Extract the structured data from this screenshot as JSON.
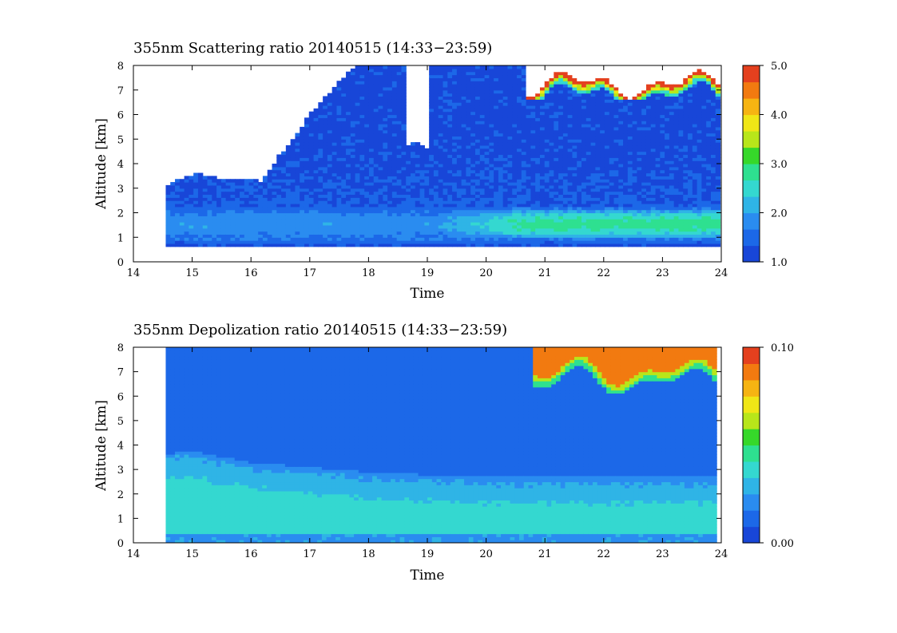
{
  "colors": {
    "colormap": [
      "#1846d8",
      "#1c68e8",
      "#2a8cf0",
      "#2fb4e6",
      "#34d8d0",
      "#2ee090",
      "#36d82a",
      "#b8e61a",
      "#f0e616",
      "#f6b412",
      "#f27a10",
      "#e4401e"
    ],
    "background": "#ffffff",
    "saturated_fill": "#ffffff"
  },
  "chart_data": [
    {
      "type": "heatmap",
      "title": "355nm Scattering ratio  20140515 (14:33−23:59)",
      "xlabel": "Time",
      "ylabel": "Altitude [km]",
      "xlim": [
        14,
        24
      ],
      "ylim": [
        0,
        8
      ],
      "xticks": [
        "14",
        "15",
        "16",
        "17",
        "18",
        "19",
        "20",
        "21",
        "22",
        "23",
        "24"
      ],
      "yticks": [
        "0",
        "1",
        "2",
        "3",
        "4",
        "5",
        "6",
        "7",
        "8"
      ],
      "colorbar": {
        "range": [
          1.0,
          5.0
        ],
        "ticks": [
          "1.0",
          "2.0",
          "3.0",
          "4.0",
          "5.0"
        ]
      },
      "data_time_range": [
        14.55,
        23.98
      ],
      "features": {
        "boundary_layer_aerosol_top_km": [
          [
            14.55,
            3.1
          ],
          [
            14.7,
            3.3
          ],
          [
            15.1,
            3.6
          ],
          [
            15.5,
            3.4
          ],
          [
            16.2,
            3.3
          ],
          [
            16.3,
            3.7
          ],
          [
            16.5,
            4.4
          ],
          [
            16.7,
            5.0
          ],
          [
            17.0,
            6.0
          ],
          [
            17.3,
            6.8
          ],
          [
            17.6,
            7.6
          ],
          [
            17.8,
            8.0
          ],
          [
            24.0,
            8.0
          ]
        ],
        "aerosol_layer_km": [
          1.0,
          2.1
        ],
        "aerosol_layer_peak_ratio": 2.8,
        "lowest_valid_altitude_km": 0.65,
        "cirrus_cloud": {
          "time": [
            20.7,
            23.98
          ],
          "base_km": 6.8,
          "top_km": 8.0,
          "ratio": ">5.0"
        }
      }
    },
    {
      "type": "heatmap",
      "title": "355nm Depolization ratio  20140515 (14:33−23:59)",
      "xlabel": "Time",
      "ylabel": "Altitude [km]",
      "xlim": [
        14,
        24
      ],
      "ylim": [
        0,
        8
      ],
      "xticks": [
        "14",
        "15",
        "16",
        "17",
        "18",
        "19",
        "20",
        "21",
        "22",
        "23",
        "24"
      ],
      "yticks": [
        "0",
        "1",
        "2",
        "3",
        "4",
        "5",
        "6",
        "7",
        "8"
      ],
      "colorbar": {
        "range": [
          0.0,
          0.1
        ],
        "ticks": [
          "0.00",
          "0.10"
        ]
      },
      "data_time_range": [
        14.55,
        23.92
      ],
      "features": {
        "boundary_layer_top_km": [
          [
            14.55,
            3.6
          ],
          [
            14.9,
            3.8
          ],
          [
            16.0,
            3.3
          ],
          [
            18.0,
            2.9
          ],
          [
            20.0,
            2.7
          ],
          [
            23.92,
            2.7
          ]
        ],
        "boundary_layer_depol": 0.035,
        "free_troposphere_depol": 0.01,
        "cirrus_cloud": {
          "time": [
            20.8,
            23.92
          ],
          "base_km": 6.4,
          "top_km": 8.0,
          "depol": 0.09
        }
      }
    }
  ]
}
